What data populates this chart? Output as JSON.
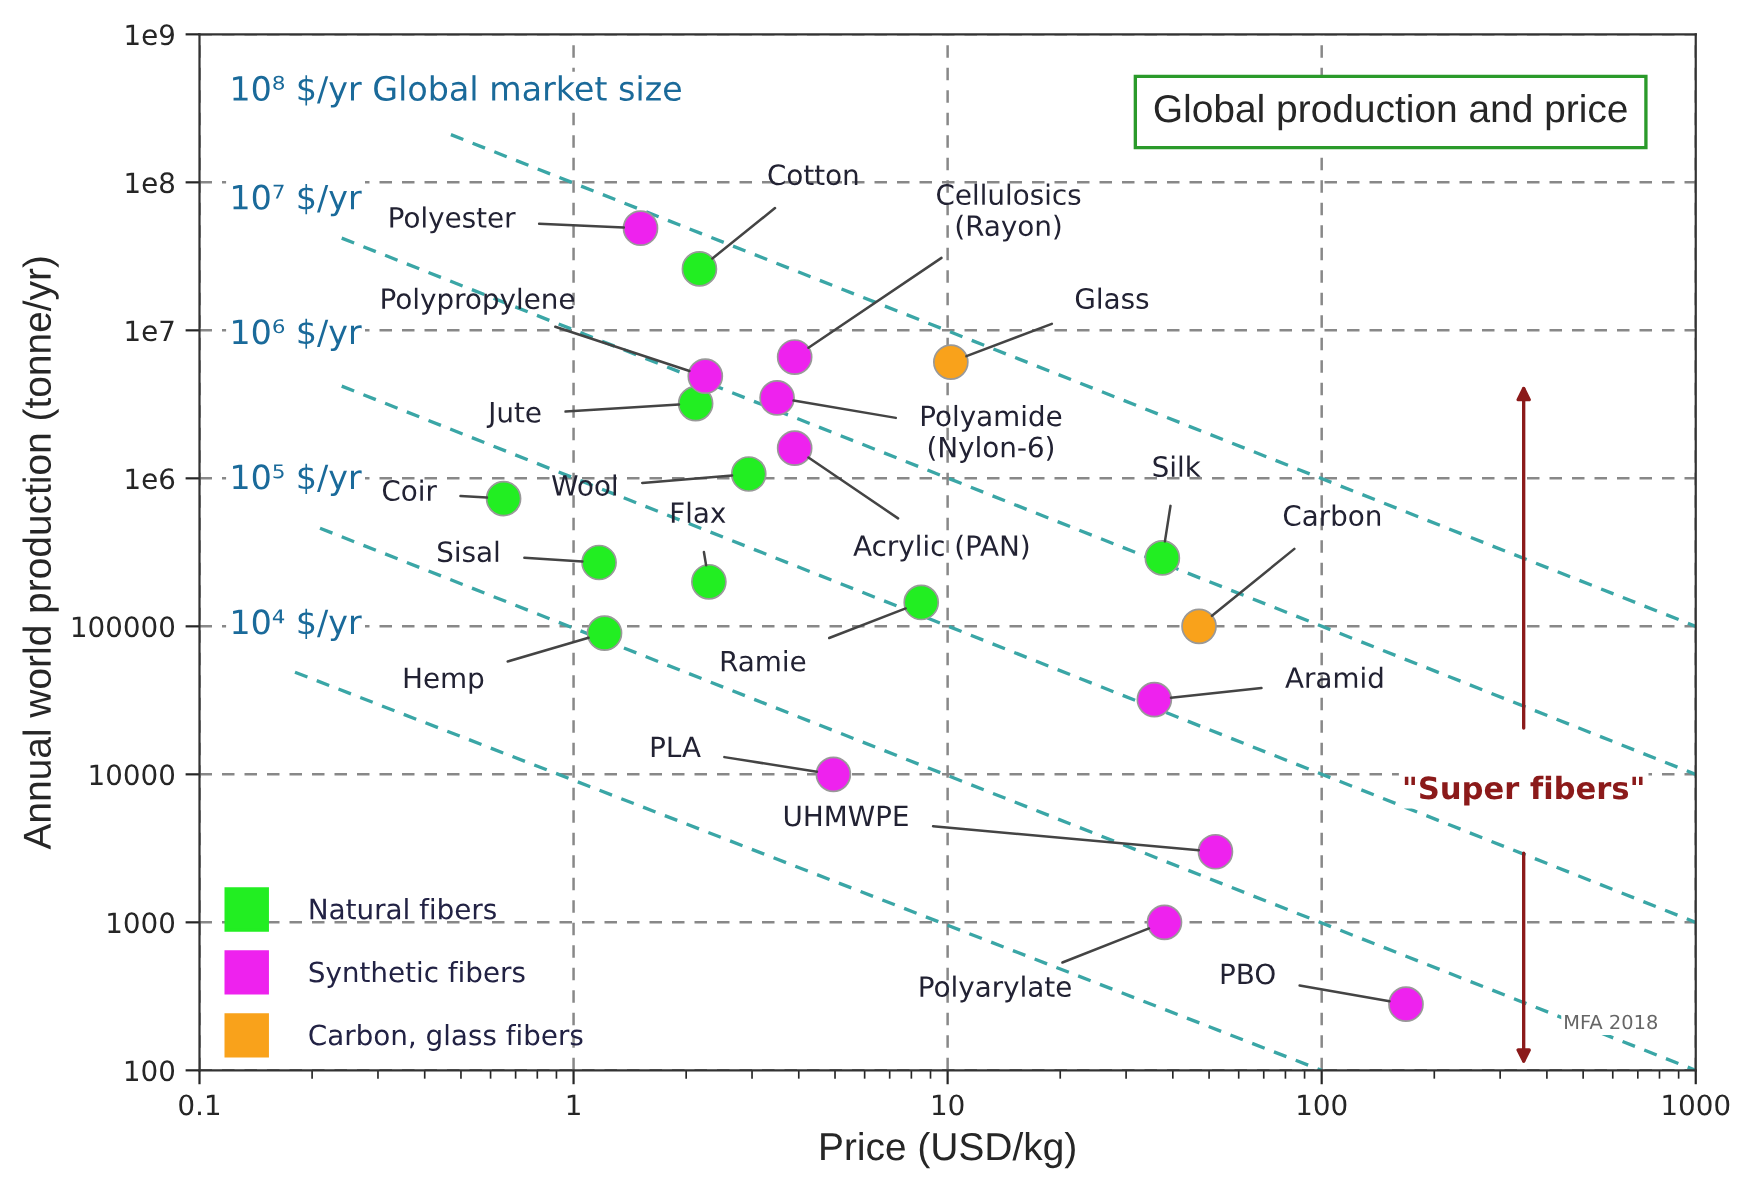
{
  "chart_data": {
    "type": "scatter",
    "title": "Global production and price",
    "xlabel": "Price (USD/kg)",
    "ylabel": "Annual world production (tonne/yr)",
    "log": "xy",
    "xlim": [
      0.1,
      1000
    ],
    "ylim": [
      100,
      1000000000
    ],
    "xticks": [
      0.1,
      1,
      10,
      100,
      1000
    ],
    "yticks": [
      {
        "value": 100,
        "label": "100"
      },
      {
        "value": 1000,
        "label": "1000"
      },
      {
        "value": 10000,
        "label": "10000"
      },
      {
        "value": 100000,
        "label": "100000"
      },
      {
        "value": 1000000,
        "label": "1e6"
      },
      {
        "value": 10000000,
        "label": "1e7"
      },
      {
        "value": 100000000,
        "label": "1e8"
      },
      {
        "value": 1000000000,
        "label": "1e9"
      }
    ],
    "grid": true,
    "legend": "bottom left",
    "marker": "circle",
    "series": [
      {
        "name": "Natural fibers",
        "color": "#22ee22",
        "x": [
          2.17,
          2.12,
          2.94,
          0.65,
          1.17,
          2.3,
          8.5,
          1.21,
          37.5
        ],
        "values": [
          26000000,
          3200000,
          1070000,
          730000,
          270000,
          200000,
          145000,
          90000,
          290000
        ]
      },
      {
        "name": "Synthetic fibers",
        "color": "#ee22ee",
        "x": [
          1.51,
          3.9,
          2.25,
          3.5,
          3.9,
          35.7,
          4.95,
          52,
          38,
          168
        ],
        "values": [
          49000000,
          6600000,
          4900000,
          3500000,
          1600000,
          32000,
          10000,
          3000,
          1000,
          280
        ]
      },
      {
        "name": "Carbon, glass fibers",
        "color": "#f9a21b",
        "x": [
          10.2,
          47
        ],
        "values": [
          6100000,
          100000
        ]
      },
      {
        "type": "line",
        "line_style": "dashed",
        "marker": "none",
        "color": "#3aa6a6",
        "x": [
          0.47,
          1000
        ],
        "values": [
          210000000,
          100000
        ]
      },
      {
        "type": "line",
        "line_style": "dashed",
        "marker": "none",
        "color": "#3aa6a6",
        "x": [
          0.24,
          1000
        ],
        "values": [
          42000000,
          10000
        ]
      },
      {
        "type": "line",
        "line_style": "dashed",
        "marker": "none",
        "color": "#3aa6a6",
        "x": [
          0.24,
          1000
        ],
        "values": [
          4200000,
          1000
        ]
      },
      {
        "type": "line",
        "line_style": "dashed",
        "marker": "none",
        "color": "#3aa6a6",
        "x": [
          0.21,
          1000
        ],
        "values": [
          460000,
          100
        ]
      },
      {
        "type": "line",
        "line_style": "dashed",
        "marker": "none",
        "color": "#3aa6a6",
        "x": [
          0.18,
          100
        ],
        "values": [
          49000,
          100
        ]
      }
    ],
    "annotations": [
      "10⁸ $/yr Global market size",
      "10⁷ $/yr",
      "10⁶ $/yr",
      "10⁵ $/yr",
      "10⁴ $/yr",
      "\"Super fibers\"",
      "MFA 2018",
      {
        "text": "Polyester",
        "x": 1.51,
        "y": 49000000
      },
      {
        "text": "Cotton",
        "x": 2.17,
        "y": 26000000
      },
      {
        "text": "Cellulosics\n(Rayon)",
        "x": 3.9,
        "y": 6600000
      },
      {
        "text": "Glass",
        "x": 10.2,
        "y": 6100000
      },
      {
        "text": "Polypropylene",
        "x": 2.25,
        "y": 4900000
      },
      {
        "text": "Polyamide\n(Nylon-6)",
        "x": 3.5,
        "y": 3500000
      },
      {
        "text": "Jute",
        "x": 2.12,
        "y": 3200000
      },
      {
        "text": "Acrylic (PAN)",
        "x": 3.9,
        "y": 1600000
      },
      {
        "text": "Wool",
        "x": 2.94,
        "y": 1070000
      },
      {
        "text": "Coir",
        "x": 0.65,
        "y": 730000
      },
      {
        "text": "Sisal",
        "x": 1.17,
        "y": 270000
      },
      {
        "text": "Flax",
        "x": 2.3,
        "y": 200000
      },
      {
        "text": "Ramie",
        "x": 8.5,
        "y": 145000
      },
      {
        "text": "Hemp",
        "x": 1.21,
        "y": 90000
      },
      {
        "text": "Silk",
        "x": 37.5,
        "y": 290000
      },
      {
        "text": "Carbon",
        "x": 47,
        "y": 100000
      },
      {
        "text": "Aramid",
        "x": 35.7,
        "y": 32000
      },
      {
        "text": "PLA",
        "x": 4.95,
        "y": 10000
      },
      {
        "text": "UHMWPE",
        "x": 52,
        "y": 3000
      },
      {
        "text": "Polyarylate",
        "x": 38,
        "y": 1000
      },
      {
        "text": "PBO",
        "x": 168,
        "y": 280
      }
    ]
  }
}
